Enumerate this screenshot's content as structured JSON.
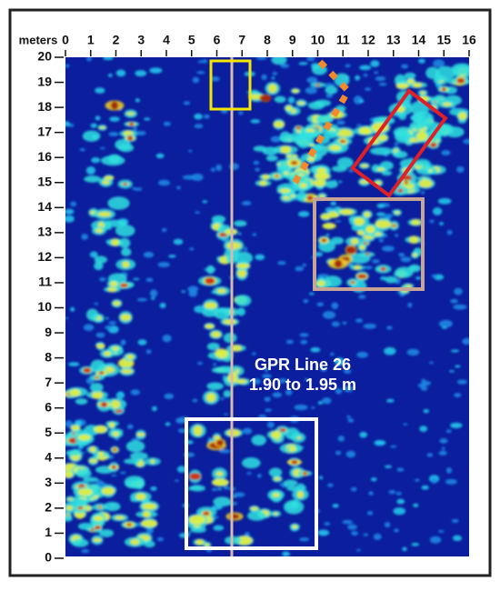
{
  "axis_label": "meters",
  "x_ticks": [
    0,
    1,
    2,
    3,
    4,
    5,
    6,
    7,
    8,
    9,
    10,
    11,
    12,
    13,
    14,
    15,
    16
  ],
  "y_ticks": [
    0,
    1,
    2,
    3,
    4,
    5,
    6,
    7,
    8,
    9,
    10,
    11,
    12,
    13,
    14,
    15,
    16,
    17,
    18,
    19,
    20
  ],
  "annotation": {
    "line1": "GPR Line 26",
    "line2": "1.90 to 1.95 m"
  }
}
